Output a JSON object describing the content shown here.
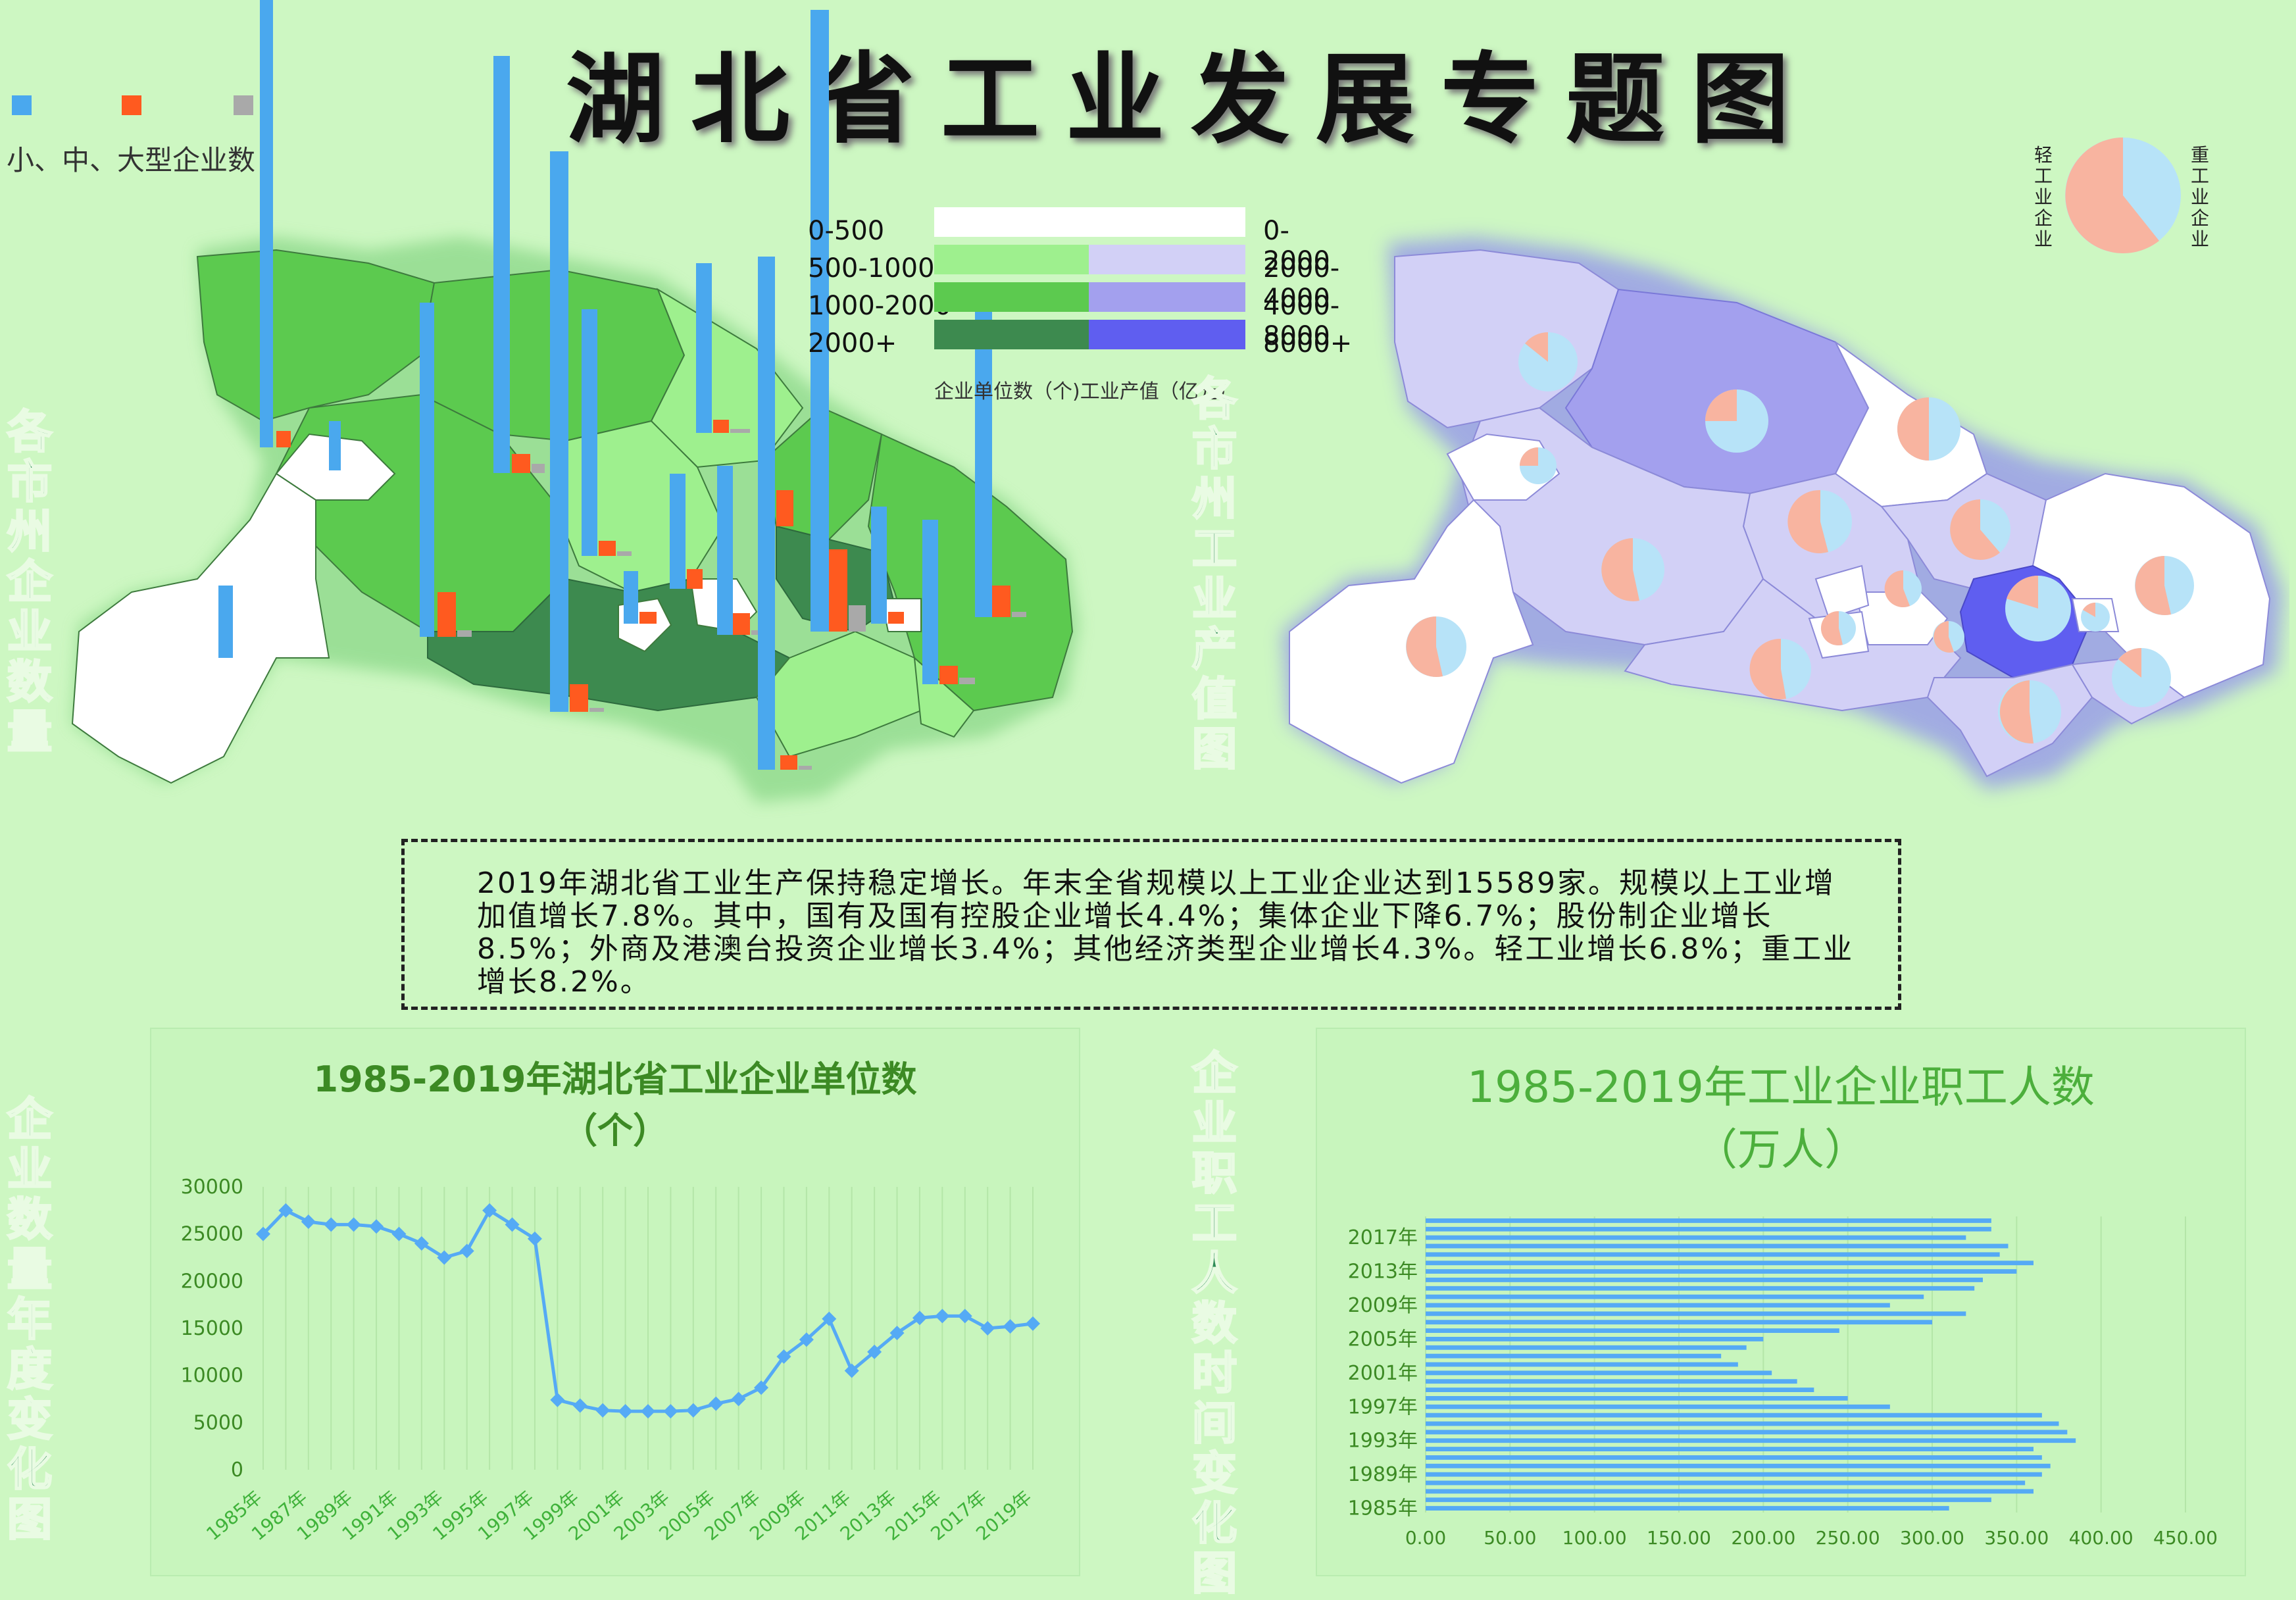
{
  "title": "湖北省工业发展专题图",
  "left_map": {
    "side_title": "各市州企业数量",
    "bar_legend_label": "小、中、大型企业数",
    "bar_colors": [
      "#4aa8ee",
      "#ff5a1f",
      "#a9a9a9"
    ]
  },
  "right_map": {
    "side_title": "各市州工业产值图",
    "pie_legend": {
      "light_label": "轻工业企业",
      "heavy_label": "重工业企业"
    }
  },
  "legend": {
    "count_ranges": [
      "0-500",
      "500-1000",
      "1000-2000",
      "2000+"
    ],
    "value_ranges": [
      "0-2000",
      "2000-4000",
      "4000-8000",
      "8000+"
    ],
    "count_colors": [
      "#ffffff",
      "#9ef08e",
      "#5cca4f",
      "#3d8a4f"
    ],
    "value_colors": [
      "#ffffff",
      "#d2d0f6",
      "#a3a0ee",
      "#5f5ef0"
    ],
    "caption": "企业单位数（个)工业产值（亿元）"
  },
  "summary_text": "2019年湖北省工业生产保持稳定增长。年末全省规模以上工业企业达到15589家。规模以上工业增加值增长7.8%。其中，国有及国有控股企业增长4.4%；集体企业下降6.7%；股份制企业增长8.5%；外商及港澳台投资企业增长3.4%；其他经济类型企业增长4.3%。轻工业增长6.8%；重工业增长8.2%。",
  "line_chart_side_title": "企业数量年度变化图",
  "bar_chart_side_title": "企业职工人数时间变化图",
  "chart_data": [
    {
      "type": "line",
      "title": "1985-2019年湖北省工业企业单位数",
      "subtitle": "（个）",
      "x": [
        1985,
        1986,
        1987,
        1988,
        1989,
        1990,
        1991,
        1992,
        1993,
        1994,
        1995,
        1996,
        1997,
        1998,
        1999,
        2000,
        2001,
        2002,
        2003,
        2004,
        2005,
        2006,
        2007,
        2008,
        2009,
        2010,
        2011,
        2012,
        2013,
        2014,
        2015,
        2016,
        2017,
        2018,
        2019
      ],
      "x_tick_labels": [
        "1985年",
        "1987年",
        "1989年",
        "1991年",
        "1993年",
        "1995年",
        "1997年",
        "1999年",
        "2001年",
        "2003年",
        "2005年",
        "2007年",
        "2009年",
        "2011年",
        "2013年",
        "2015年",
        "2017年",
        "2019年"
      ],
      "y": [
        25000,
        27500,
        26300,
        26000,
        26000,
        25800,
        25000,
        24000,
        22500,
        23200,
        27500,
        26000,
        24500,
        7400,
        6800,
        6300,
        6200,
        6200,
        6200,
        6300,
        7000,
        7500,
        8700,
        12000,
        13800,
        16000,
        10500,
        12500,
        14500,
        16100,
        16300,
        16300,
        15000,
        15200,
        15500
      ],
      "ylim": [
        0,
        30000
      ],
      "y_ticks": [
        "30000",
        "25000",
        "20000",
        "15000",
        "10000",
        "5000",
        "0"
      ],
      "color": "#55aaf5"
    },
    {
      "type": "bar",
      "orientation": "horizontal",
      "title": "1985-2019年工业企业职工人数",
      "subtitle": "（万人）",
      "categories": [
        1985,
        1986,
        1987,
        1988,
        1989,
        1990,
        1991,
        1992,
        1993,
        1994,
        1995,
        1996,
        1997,
        1998,
        1999,
        2000,
        2001,
        2002,
        2003,
        2004,
        2005,
        2006,
        2007,
        2008,
        2009,
        2010,
        2011,
        2012,
        2013,
        2014,
        2015,
        2016,
        2017,
        2018,
        2019
      ],
      "y_tick_labels": [
        "2017年",
        "2013年",
        "2009年",
        "2005年",
        "2001年",
        "1997年",
        "1993年",
        "1989年",
        "1985年"
      ],
      "values": [
        310,
        335,
        360,
        355,
        365,
        370,
        365,
        360,
        385,
        380,
        375,
        365,
        275,
        250,
        230,
        220,
        205,
        185,
        175,
        190,
        200,
        245,
        300,
        320,
        275,
        295,
        325,
        330,
        350,
        360,
        340,
        345,
        320,
        335,
        335
      ],
      "xlim": [
        0,
        450
      ],
      "x_tick_labels": [
        "0.00",
        "50.00",
        "100.00",
        "150.00",
        "200.00",
        "250.00",
        "300.00",
        "350.00",
        "400.00",
        "450.00"
      ],
      "color": "#55aaf5"
    }
  ]
}
